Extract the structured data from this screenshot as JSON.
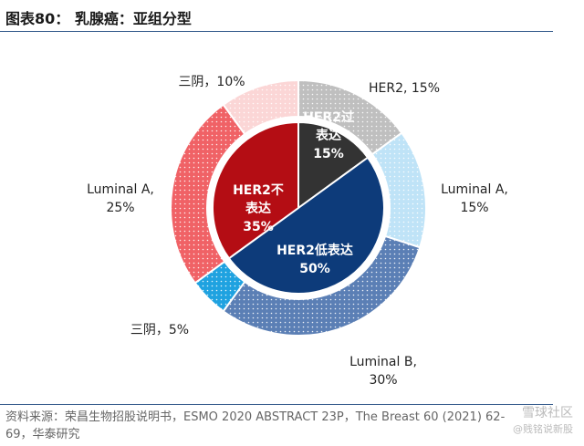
{
  "header": {
    "title": "图表80：   乳腺癌：亚组分型"
  },
  "chart_data": {
    "type": "pie",
    "inner_ring": [
      {
        "label": "HER2过\n表达\n15%",
        "value": 15,
        "color": "#333333"
      },
      {
        "label": "HER2低表达\n50%",
        "value": 50,
        "color": "#0d3b7a"
      },
      {
        "label": "HER2不\n表达\n35%",
        "value": 35,
        "color": "#b40d14"
      }
    ],
    "outer_ring": [
      {
        "label": "HER2, 15%",
        "value": 15,
        "color": "#bfbfbf"
      },
      {
        "label": "Luminal A,\n15%",
        "value": 15,
        "color": "#bfe3f7"
      },
      {
        "label": "Luminal B,\n30%",
        "value": 30,
        "color": "#5b7fb5"
      },
      {
        "label": "三阴，5%",
        "value": 5,
        "color": "#1fa2e0"
      },
      {
        "label": "Luminal A,\n25%",
        "value": 25,
        "color": "#f06266"
      },
      {
        "label": "三阴，10%",
        "value": 10,
        "color": "#fbd6d6"
      }
    ]
  },
  "footer": {
    "source": "资料来源：荣昌生物招股说明书，ESMO 2020 ABSTRACT 23P，The Breast 60 (2021) 62-69，华泰研究",
    "watermark_main": "雪球社区",
    "watermark_sub": "@贱铭说新股"
  }
}
